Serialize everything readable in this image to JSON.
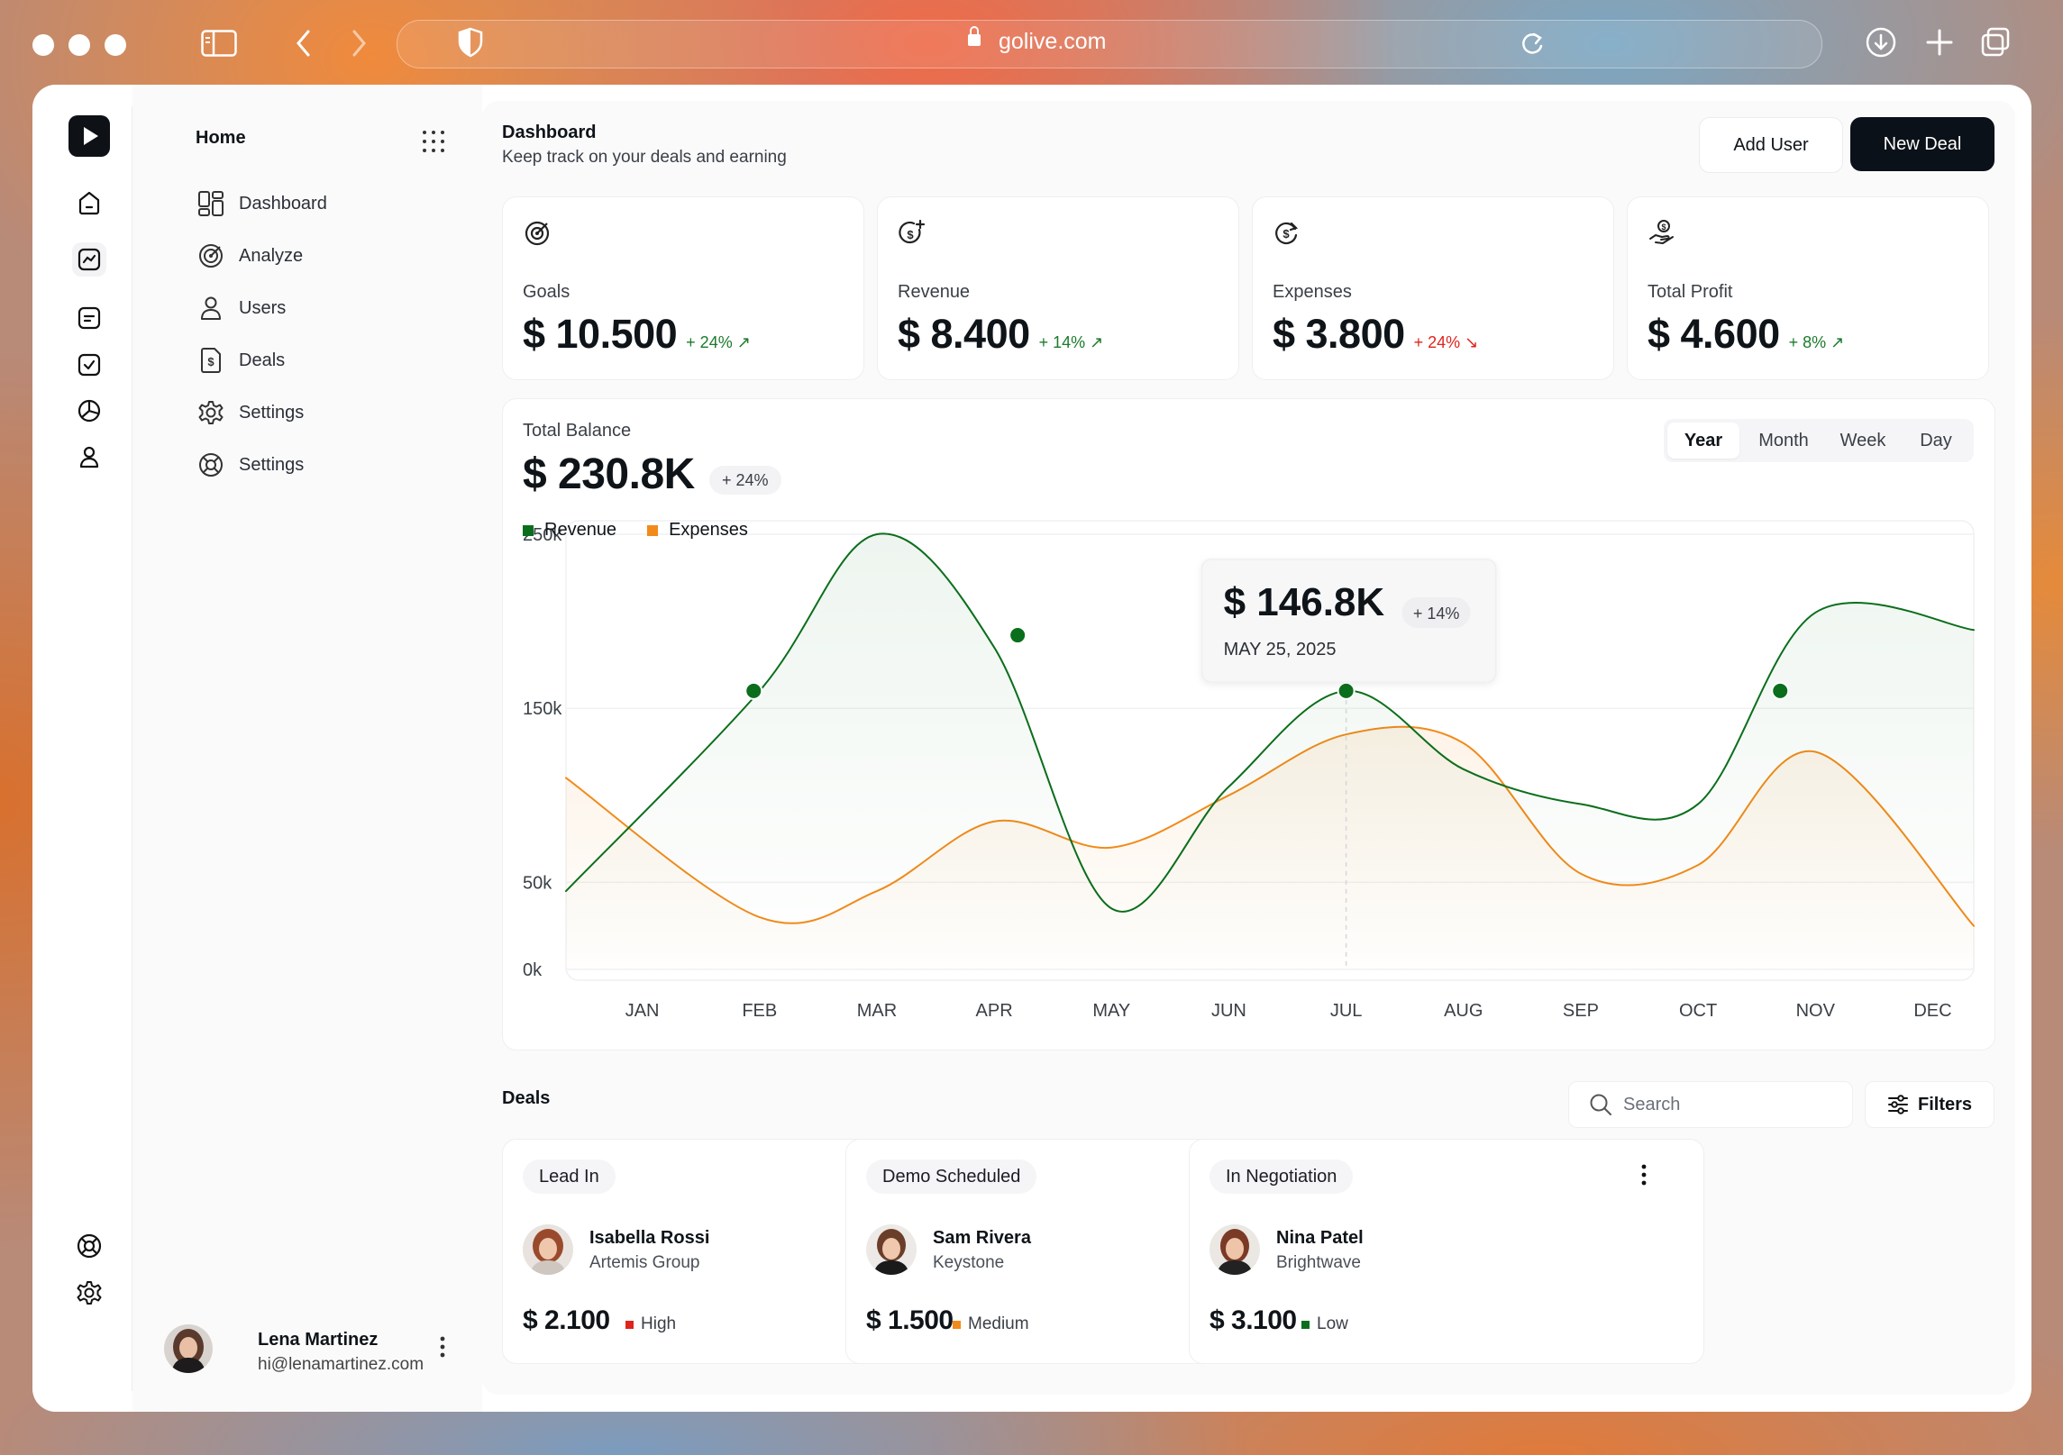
{
  "browser": {
    "url": "golive.com"
  },
  "sidebar": {
    "title": "Home",
    "items": [
      {
        "label": "Dashboard",
        "icon": "dashboard-icon"
      },
      {
        "label": "Analyze",
        "icon": "target-icon"
      },
      {
        "label": "Users",
        "icon": "user-icon"
      },
      {
        "label": "Deals",
        "icon": "dollar-file-icon"
      },
      {
        "label": "Settings",
        "icon": "gear-icon"
      },
      {
        "label": "Settings",
        "icon": "lifebuoy-icon"
      }
    ],
    "user": {
      "name": "Lena Martinez",
      "email": "hi@lenamartinez.com"
    }
  },
  "header": {
    "title": "Dashboard",
    "subtitle": "Keep track on your deals and earning",
    "add_user": "Add User",
    "new_deal": "New Deal"
  },
  "stats": [
    {
      "label": "Goals",
      "value": "$ 10.500",
      "delta": "+ 24% ↗",
      "trend": "up",
      "icon": "target-icon"
    },
    {
      "label": "Revenue",
      "value": "$ 8.400",
      "delta": "+ 14% ↗",
      "trend": "up",
      "icon": "dollar-plus-icon"
    },
    {
      "label": "Expenses",
      "value": "$ 3.800",
      "delta": "+ 24% ↘",
      "trend": "down",
      "icon": "dollar-refresh-icon"
    },
    {
      "label": "Total Profit",
      "value": "$ 4.600",
      "delta": "+ 8% ↗",
      "trend": "up",
      "icon": "dollar-hand-icon"
    }
  ],
  "balance": {
    "label": "Total Balance",
    "value": "$ 230.8K",
    "delta": "+ 24%",
    "periods": [
      "Year",
      "Month",
      "Week",
      "Day"
    ],
    "selected_period": "Year"
  },
  "chart_data": {
    "type": "line",
    "title": "",
    "xlabel": "",
    "ylabel": "",
    "x": [
      "JAN",
      "FEB",
      "MAR",
      "APR",
      "MAY",
      "JUN",
      "JUL",
      "AUG",
      "SEP",
      "OCT",
      "NOV",
      "DEC"
    ],
    "y_ticks": [
      "250k",
      "150k",
      "50k",
      "0k"
    ],
    "ylim": [
      0,
      250
    ],
    "grid": true,
    "legend": "top-left",
    "series": [
      {
        "name": "Revenue",
        "color": "#0b6e1c",
        "values": [
          45,
          160,
          250,
          185,
          35,
          105,
          160,
          115,
          95,
          95,
          205,
          195
        ],
        "markers": [
          [
            0.95,
            160
          ],
          [
            3.2,
            192
          ],
          [
            6.0,
            160
          ],
          [
            9.7,
            160
          ]
        ]
      },
      {
        "name": "Expenses",
        "color": "#f28a1a",
        "values": [
          110,
          30,
          45,
          85,
          70,
          100,
          135,
          130,
          55,
          60,
          125,
          25
        ]
      }
    ],
    "tooltip": {
      "value": "$ 146.8K",
      "delta": "+ 14%",
      "date": "MAY 25, 2025",
      "at_x": 6.0
    }
  },
  "deals": {
    "title": "Deals",
    "search_placeholder": "Search",
    "filters": "Filters",
    "cards": [
      {
        "stage": "Lead In",
        "name": "Isabella Rossi",
        "company": "Artemis Group",
        "amount": "$ 2.100",
        "priority": "High",
        "priority_color": "#e0241d"
      },
      {
        "stage": "Demo Scheduled",
        "name": "Sam Rivera",
        "company": "Keystone",
        "amount": "$ 1.500",
        "priority": "Medium",
        "priority_color": "#f28a1a"
      },
      {
        "stage": "In Negotiation",
        "name": "Nina Patel",
        "company": "Brightwave",
        "amount": "$ 3.100",
        "priority": "Low",
        "priority_color": "#0b6e1c"
      }
    ]
  }
}
